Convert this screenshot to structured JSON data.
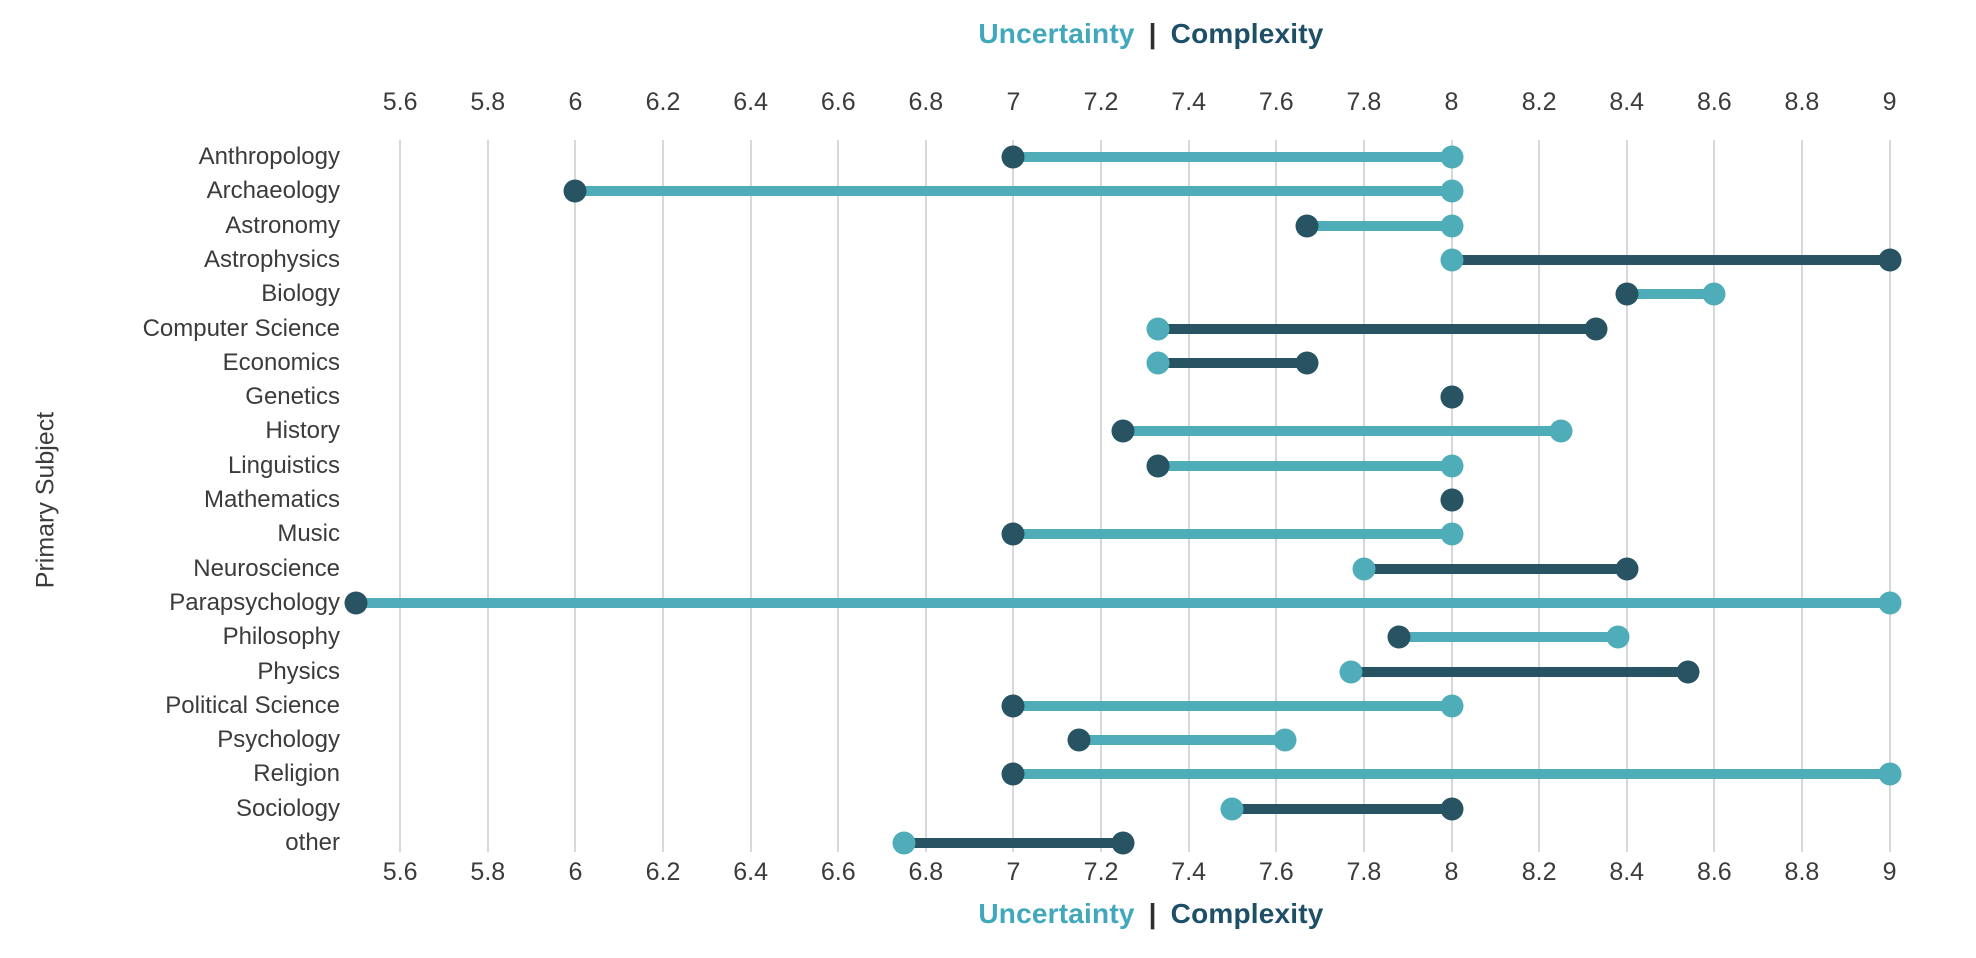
{
  "title": {
    "uncertainty_label": "Uncertainty",
    "separator": "|",
    "complexity_label": "Complexity"
  },
  "y_axis_title": "Primary Subject",
  "colors": {
    "uncertainty": "#4EADB9",
    "complexity": "#275362",
    "title_uncertainty": "#41A8BC",
    "title_complexity": "#1D4F68",
    "title_separator": "#2f2f2f",
    "gridline": "#d8d8d8",
    "text": "#3b3b3b"
  },
  "chart_data": {
    "type": "dumbbell",
    "title": "Uncertainty | Complexity",
    "ylabel": "Primary Subject",
    "x_ticks": [
      5.6,
      5.8,
      6,
      6.2,
      6.4,
      6.6,
      6.8,
      7,
      7.2,
      7.4,
      7.6,
      7.8,
      8,
      8.2,
      8.4,
      8.6,
      8.8,
      9
    ],
    "xlim": [
      5.5,
      9.0
    ],
    "grid": "vertical",
    "legend_position": "title-top-and-bottom",
    "categories": [
      "Anthropology",
      "Archaeology",
      "Astronomy",
      "Astrophysics",
      "Biology",
      "Computer Science",
      "Economics",
      "Genetics",
      "History",
      "Linguistics",
      "Mathematics",
      "Music",
      "Neuroscience",
      "Parapsychology",
      "Philosophy",
      "Physics",
      "Political Science",
      "Psychology",
      "Religion",
      "Sociology",
      "other"
    ],
    "series": [
      {
        "name": "Uncertainty",
        "values": [
          8.0,
          8.0,
          8.0,
          8.0,
          8.6,
          7.33,
          7.33,
          8.0,
          8.25,
          8.0,
          8.0,
          8.0,
          7.8,
          9.0,
          8.38,
          7.77,
          8.0,
          7.62,
          9.0,
          7.5,
          6.75
        ]
      },
      {
        "name": "Complexity",
        "values": [
          7.0,
          6.0,
          7.67,
          9.0,
          8.4,
          8.33,
          7.67,
          8.0,
          7.25,
          7.33,
          8.0,
          7.0,
          8.4,
          5.5,
          7.88,
          8.54,
          7.0,
          7.15,
          7.0,
          8.0,
          7.25
        ]
      }
    ]
  }
}
